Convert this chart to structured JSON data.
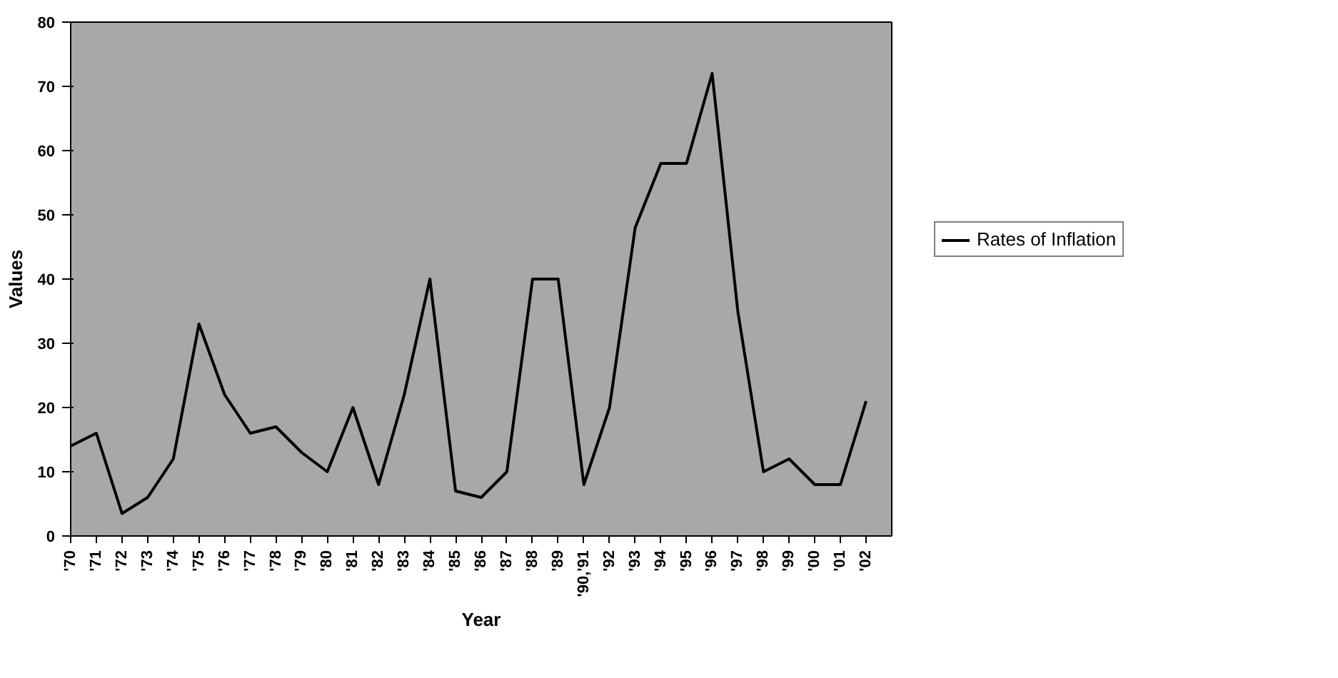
{
  "chart_data": {
    "type": "line",
    "xlabel": "Year",
    "ylabel": "Values",
    "categories": [
      "'70",
      "'71",
      "'72",
      "'73",
      "'74",
      "'75",
      "'76",
      "'77",
      "'78",
      "'79",
      "'80",
      "'81",
      "'82",
      "'83",
      "'84",
      "'85",
      "'86",
      "'87",
      "'88",
      "'89",
      "'90,'91",
      "'92",
      "'93",
      "'94",
      "'95",
      "'96",
      "'97",
      "'98",
      "'99",
      "'00",
      "'01",
      "'02"
    ],
    "series": [
      {
        "name": "Rates of Inflation",
        "color": "#000000",
        "values": [
          14,
          16,
          3.5,
          6,
          12,
          33,
          22,
          16,
          17,
          13,
          10,
          20,
          8,
          22,
          40,
          7,
          6,
          10,
          40,
          40,
          8,
          20,
          48,
          58,
          58,
          72,
          35,
          10,
          12,
          8,
          8,
          21
        ]
      }
    ],
    "ylim": [
      0,
      80
    ],
    "yticks": [
      0,
      10,
      20,
      30,
      40,
      50,
      60,
      70,
      80
    ],
    "grid": false,
    "legend": "right",
    "marker": "none",
    "line_style": "solid"
  }
}
